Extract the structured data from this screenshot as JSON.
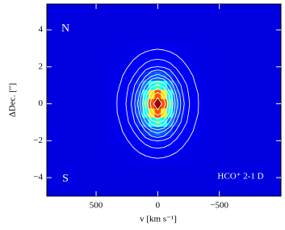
{
  "chart_data": {
    "type": "heatmap",
    "colormap": "jet",
    "zlim": [
      0,
      1.05
    ],
    "background": 0.1,
    "xlabel": "v [km s⁻¹]",
    "ylabel": "ΔDec. [′′]",
    "annotations": [
      "N",
      "S",
      "HCO⁺ 2-1 D"
    ],
    "xlim": [
      900,
      -1000
    ],
    "ylim": [
      -5,
      5.4
    ],
    "xticks": [
      500,
      0,
      {
        "value": -500,
        "label": "−500"
      }
    ],
    "yticks": [
      4,
      2,
      0,
      {
        "value": -2,
        "label": "−2"
      },
      {
        "value": -4,
        "label": "−4"
      }
    ],
    "x": [
      400,
      350,
      300,
      250,
      200,
      150,
      100,
      50,
      0,
      -50,
      -100,
      -150,
      -200,
      -250,
      -300,
      -350,
      -400
    ],
    "y": [
      3,
      2.5,
      2,
      1.5,
      1,
      0.5,
      0,
      -0.5,
      -1,
      -1.5,
      -2,
      -2.5,
      -3
    ],
    "z": [
      [
        0.101,
        0.102,
        0.103,
        0.105,
        0.107,
        0.11,
        0.112,
        0.113,
        0.114,
        0.113,
        0.112,
        0.11,
        0.107,
        0.105,
        0.103,
        0.102,
        0.101
      ],
      [
        0.102,
        0.104,
        0.106,
        0.109,
        0.113,
        0.117,
        0.12,
        0.124,
        0.125,
        0.124,
        0.12,
        0.117,
        0.113,
        0.109,
        0.106,
        0.104,
        0.102
      ],
      [
        0.103,
        0.106,
        0.109,
        0.114,
        0.12,
        0.127,
        0.137,
        0.146,
        0.151,
        0.146,
        0.137,
        0.127,
        0.12,
        0.114,
        0.109,
        0.106,
        0.103
      ],
      [
        0.104,
        0.108,
        0.113,
        0.12,
        0.129,
        0.145,
        0.175,
        0.216,
        0.237,
        0.216,
        0.175,
        0.145,
        0.129,
        0.12,
        0.113,
        0.108,
        0.104
      ],
      [
        0.106,
        0.11,
        0.116,
        0.126,
        0.141,
        0.177,
        0.266,
        0.4,
        0.472,
        0.4,
        0.266,
        0.177,
        0.141,
        0.126,
        0.116,
        0.11,
        0.106
      ],
      [
        0.107,
        0.112,
        0.119,
        0.13,
        0.152,
        0.22,
        0.402,
        0.684,
        0.835,
        0.684,
        0.402,
        0.22,
        0.152,
        0.13,
        0.119,
        0.112,
        0.107
      ],
      [
        0.107,
        0.112,
        0.12,
        0.132,
        0.158,
        0.242,
        0.475,
        0.836,
        1.03,
        0.836,
        0.475,
        0.242,
        0.158,
        0.132,
        0.12,
        0.112,
        0.107
      ],
      [
        0.107,
        0.112,
        0.119,
        0.13,
        0.152,
        0.22,
        0.402,
        0.684,
        0.835,
        0.684,
        0.402,
        0.22,
        0.152,
        0.13,
        0.119,
        0.112,
        0.107
      ],
      [
        0.106,
        0.11,
        0.116,
        0.126,
        0.141,
        0.177,
        0.266,
        0.4,
        0.472,
        0.4,
        0.266,
        0.177,
        0.141,
        0.126,
        0.116,
        0.11,
        0.106
      ],
      [
        0.104,
        0.108,
        0.113,
        0.12,
        0.129,
        0.145,
        0.175,
        0.216,
        0.237,
        0.216,
        0.175,
        0.145,
        0.129,
        0.12,
        0.113,
        0.108,
        0.104
      ],
      [
        0.103,
        0.106,
        0.109,
        0.114,
        0.12,
        0.127,
        0.137,
        0.146,
        0.151,
        0.146,
        0.137,
        0.127,
        0.12,
        0.114,
        0.109,
        0.106,
        0.103
      ],
      [
        0.102,
        0.104,
        0.106,
        0.109,
        0.113,
        0.117,
        0.12,
        0.124,
        0.125,
        0.124,
        0.12,
        0.117,
        0.113,
        0.109,
        0.106,
        0.104,
        0.102
      ],
      [
        0.101,
        0.102,
        0.103,
        0.105,
        0.107,
        0.11,
        0.112,
        0.113,
        0.114,
        0.113,
        0.112,
        0.11,
        0.107,
        0.105,
        0.103,
        0.102,
        0.101
      ]
    ],
    "contour_levels": [
      0.115,
      0.13,
      0.15,
      0.18,
      0.22,
      0.28,
      0.36,
      0.46,
      0.6,
      0.75,
      0.9
    ],
    "contour_color": "#ffffff"
  }
}
